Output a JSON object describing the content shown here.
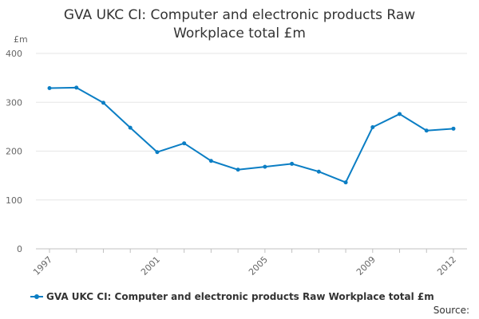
{
  "chart_data": {
    "type": "line",
    "title_lines": [
      "GVA UKC CI: Computer and electronic products Raw",
      "Workplace total £m"
    ],
    "ylabel": "£m",
    "xlabel": "",
    "ylim": [
      0,
      400
    ],
    "yticks": [
      0,
      100,
      200,
      300,
      400
    ],
    "x": [
      1997,
      1998,
      1999,
      2000,
      2001,
      2002,
      2003,
      2004,
      2005,
      2006,
      2007,
      2008,
      2009,
      2010,
      2011,
      2012
    ],
    "xtick_labels": [
      1997,
      2001,
      2005,
      2009,
      2012
    ],
    "series": [
      {
        "name": "GVA UKC CI: Computer and electronic products Raw Workplace total £m",
        "color": "#0b7ec4",
        "values": [
          329,
          330,
          299,
          248,
          198,
          216,
          180,
          162,
          168,
          174,
          158,
          136,
          249,
          276,
          242,
          246
        ]
      }
    ],
    "grid": true,
    "legend_position": "bottom-left"
  },
  "credits": "Source:"
}
